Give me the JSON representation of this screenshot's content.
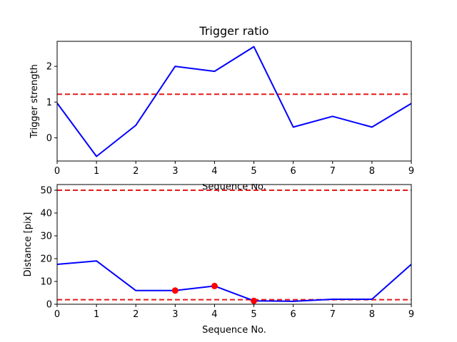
{
  "chart_data": [
    {
      "type": "line",
      "title": "Trigger ratio",
      "xlabel": "Sequence No.",
      "ylabel": "Trigger strength",
      "xlim": [
        0,
        9
      ],
      "ylim": [
        -0.65,
        2.7
      ],
      "xticks": [
        "0",
        "1",
        "2",
        "3",
        "4",
        "5",
        "6",
        "7",
        "8",
        "9"
      ],
      "yticks": [
        0,
        1,
        2
      ],
      "series": [
        {
          "x": [
            0,
            1,
            2,
            3,
            4,
            5,
            6,
            7,
            8,
            9
          ],
          "values": [
            0.97,
            -0.52,
            0.35,
            2.0,
            1.86,
            2.55,
            0.3,
            0.6,
            0.3,
            0.96
          ],
          "color": "#0000ff"
        }
      ],
      "reference_lines": [
        {
          "y": 1.22,
          "color": "#e41a1a",
          "style": "dashed"
        }
      ],
      "grid": false
    },
    {
      "type": "line",
      "title": "",
      "xlabel": "Sequence No.",
      "ylabel": "Distance [pix]",
      "xlim": [
        0,
        9
      ],
      "ylim": [
        0,
        52.5
      ],
      "xticks": [
        "0",
        "1",
        "2",
        "3",
        "4",
        "5",
        "6",
        "7",
        "8",
        "9"
      ],
      "yticks": [
        0,
        10,
        20,
        30,
        40,
        50
      ],
      "series": [
        {
          "x": [
            0,
            1,
            2,
            3,
            4,
            5,
            6,
            7,
            8,
            9
          ],
          "values": [
            17.5,
            19,
            6,
            6,
            8,
            1.5,
            1.3,
            2.2,
            2.2,
            17.5
          ],
          "color": "#0000ff"
        }
      ],
      "markers": [
        {
          "x": 3,
          "y": 6
        },
        {
          "x": 4,
          "y": 8
        },
        {
          "x": 5,
          "y": 1.5
        }
      ],
      "marker_color": "#ff0000",
      "reference_lines": [
        {
          "y": 50,
          "color": "#e41a1a",
          "style": "dashed"
        },
        {
          "y": 2,
          "color": "#e41a1a",
          "style": "dashed"
        }
      ],
      "grid": false
    }
  ]
}
